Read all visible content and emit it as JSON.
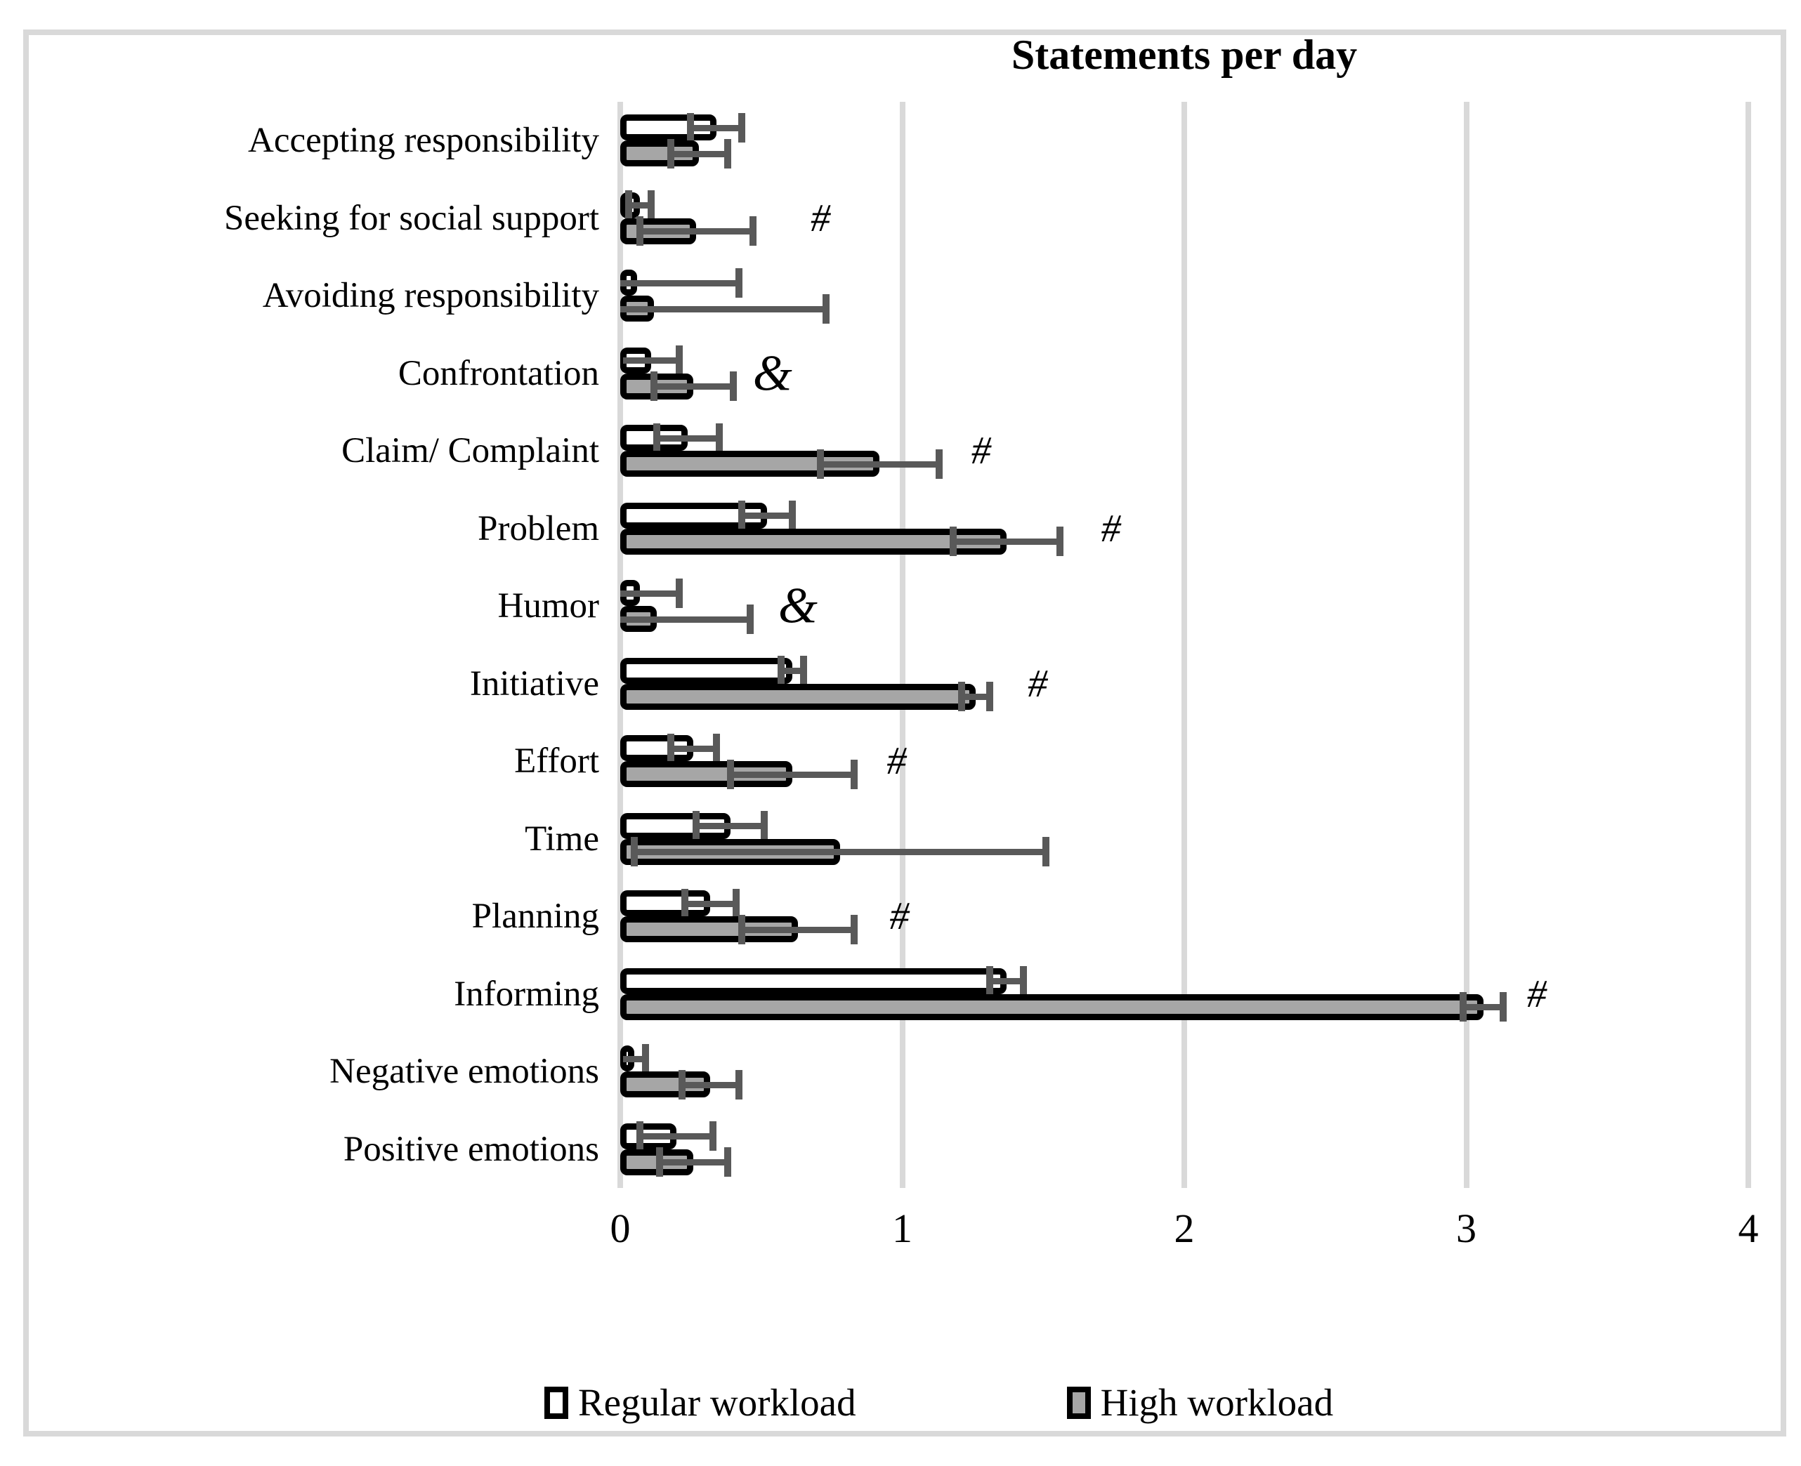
{
  "chart_data": {
    "type": "bar",
    "orientation": "horizontal",
    "title": "Statements per day",
    "categories": [
      "Accepting responsibility",
      "Seeking for social support",
      "Avoiding responsibility",
      "Confrontation",
      "Claim/ Complaint",
      "Problem",
      "Humor",
      "Initiative",
      "Effort",
      "Time",
      "Planning",
      "Informing",
      "Negative emotions",
      "Positive emotions"
    ],
    "series": [
      {
        "name": "Regular workload",
        "fill": "#ffffff",
        "values": [
          0.34,
          0.07,
          0.06,
          0.11,
          0.24,
          0.52,
          0.07,
          0.61,
          0.26,
          0.39,
          0.32,
          1.37,
          0.05,
          0.2
        ],
        "errors": [
          0.09,
          0.04,
          0.36,
          0.1,
          0.11,
          0.09,
          0.14,
          0.04,
          0.08,
          0.12,
          0.09,
          0.06,
          0.04,
          0.13
        ]
      },
      {
        "name": "High workload",
        "fill": "#a6a6a6",
        "values": [
          0.28,
          0.27,
          0.12,
          0.26,
          0.92,
          1.37,
          0.13,
          1.26,
          0.61,
          0.78,
          0.63,
          3.06,
          0.32,
          0.26
        ],
        "errors": [
          0.1,
          0.2,
          0.61,
          0.14,
          0.21,
          0.19,
          0.33,
          0.05,
          0.22,
          0.73,
          0.2,
          0.07,
          0.1,
          0.12
        ]
      }
    ],
    "annotations": [
      {
        "category": "Seeking for social support",
        "symbol": "#",
        "x": 0.71
      },
      {
        "category": "Confrontation",
        "symbol": "&",
        "x": 0.54
      },
      {
        "category": "Claim/ Complaint",
        "symbol": "#",
        "x": 1.28
      },
      {
        "category": "Problem",
        "symbol": "#",
        "x": 1.74
      },
      {
        "category": "Humor",
        "symbol": "&",
        "x": 0.63
      },
      {
        "category": "Initiative",
        "symbol": "#",
        "x": 1.48
      },
      {
        "category": "Effort",
        "symbol": "#",
        "x": 0.98
      },
      {
        "category": "Planning",
        "symbol": "#",
        "x": 0.99
      },
      {
        "category": "Informing",
        "symbol": "#",
        "x": 3.25
      }
    ],
    "x_axis": {
      "min": 0,
      "max": 4,
      "ticks": [
        0,
        1,
        2,
        3,
        4
      ]
    },
    "grid": true,
    "legend_position": "bottom",
    "colors": {
      "bar_border": "#000000",
      "regular_fill": "#ffffff",
      "high_fill": "#a6a6a6",
      "error_bar": "#595959",
      "gridline": "#d9d9d9",
      "frame_border": "#d9d9d9"
    }
  }
}
